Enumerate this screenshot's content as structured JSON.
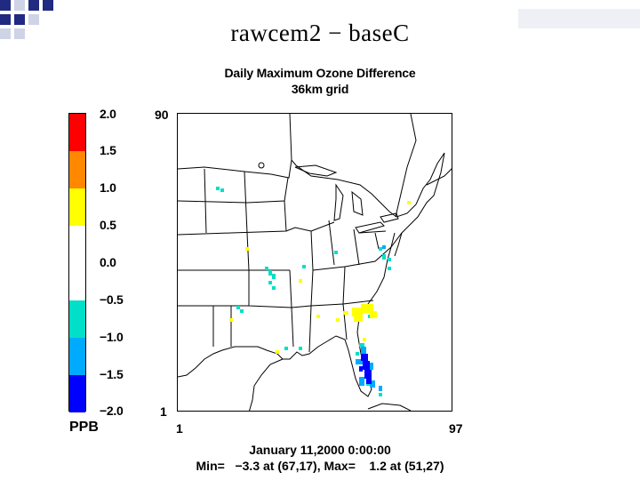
{
  "slide": {
    "title": "rawcem2 − baseC"
  },
  "map": {
    "title": "Daily Maximum Ozone Difference",
    "subtitle": "36km grid",
    "grid": {
      "x_min": "1",
      "x_max": "97",
      "y_min": "1",
      "y_max": "90"
    },
    "date_label": "January 11,2000 0:00:00",
    "stats_label": "Min=   −3.3 at (67,17), Max=    1.2 at (51,27)"
  },
  "legend": {
    "units": "PPB",
    "ticks": [
      "2.0",
      "1.5",
      "1.0",
      "0.5",
      "0.0",
      "−0.5",
      "−1.0",
      "−1.5",
      "−2.0"
    ],
    "bins": [
      {
        "color": "#ff0000"
      },
      {
        "color": "#ff8800"
      },
      {
        "color": "#ffff00"
      },
      {
        "color": "#ffffff"
      },
      {
        "color": "#ffffff"
      },
      {
        "color": "#00e0c8"
      },
      {
        "color": "#00aaff"
      },
      {
        "color": "#0000ff"
      }
    ]
  },
  "colors": {
    "negative_small": "#00e0c8",
    "negative_mid": "#00aaff",
    "negative_large": "#0000ff",
    "positive": "#ffff00"
  }
}
